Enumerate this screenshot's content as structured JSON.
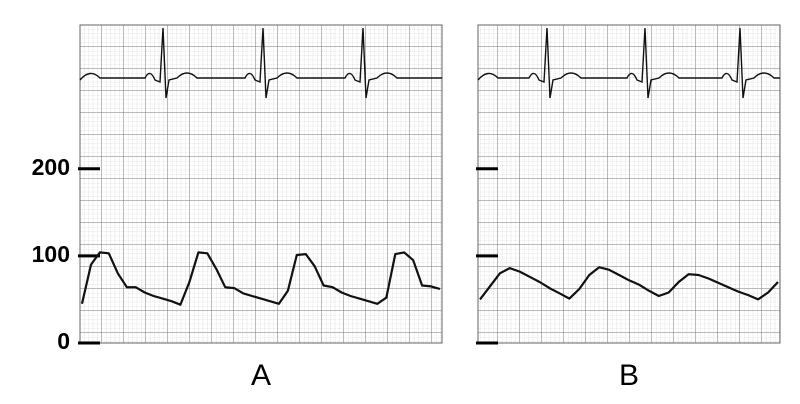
{
  "chart_data": [
    {
      "type": "line",
      "title": "A",
      "categories": [
        null,
        null,
        null,
        null,
        null,
        null,
        null,
        null,
        null,
        null,
        null,
        null,
        null,
        null,
        null,
        null,
        null,
        null,
        null,
        null,
        null,
        null,
        null,
        null,
        null,
        null,
        null,
        null,
        null,
        null,
        null,
        null,
        null,
        null,
        null,
        null,
        null,
        null,
        null,
        null,
        null
      ],
      "values": [
        45,
        90,
        104,
        103,
        80,
        64,
        64,
        58,
        54,
        51,
        48,
        44,
        70,
        104,
        103,
        85,
        64,
        63,
        57,
        54,
        51,
        48,
        45,
        60,
        101,
        102,
        88,
        66,
        64,
        58,
        54,
        51,
        48,
        45,
        52,
        102,
        104,
        95,
        66,
        65,
        62
      ],
      "color": "#111111",
      "ylim": [
        0,
        365
      ],
      "yticks": [
        0,
        100,
        200
      ],
      "grid": true
    },
    {
      "type": "line",
      "title": "B",
      "categories": [
        null,
        null,
        null,
        null,
        null,
        null,
        null,
        null,
        null,
        null,
        null,
        null,
        null,
        null,
        null,
        null,
        null,
        null,
        null,
        null,
        null,
        null,
        null,
        null,
        null,
        null,
        null,
        null,
        null,
        null,
        null
      ],
      "values": [
        50,
        65,
        80,
        86,
        82,
        76,
        70,
        63,
        57,
        51,
        62,
        78,
        87,
        84,
        78,
        72,
        67,
        60,
        54,
        58,
        70,
        79,
        78,
        74,
        69,
        64,
        59,
        55,
        50,
        58,
        70
      ],
      "color": "#111111",
      "ylim": [
        0,
        365
      ],
      "yticks": [
        0,
        100,
        200
      ],
      "grid": true
    }
  ]
}
